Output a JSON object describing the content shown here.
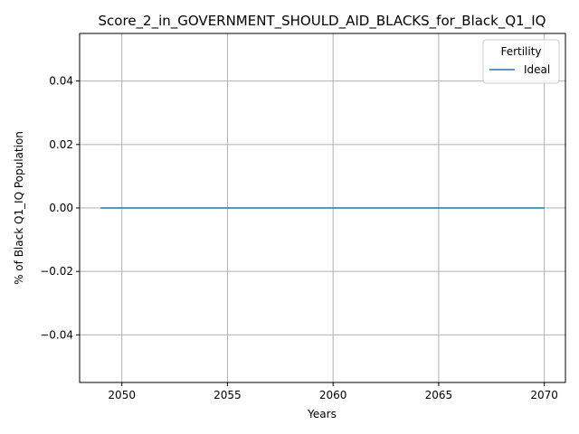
{
  "chart_data": {
    "type": "line",
    "title": "Score_2_in_GOVERNMENT_SHOULD_AID_BLACKS_for_Black_Q1_IQ",
    "xlabel": "Years",
    "ylabel": "% of Black Q1_IQ Population",
    "xlim": [
      2048,
      2071
    ],
    "ylim": [
      -0.055,
      0.055
    ],
    "x_ticks": [
      2050,
      2055,
      2060,
      2065,
      2070
    ],
    "x_tick_labels": [
      "2050",
      "2055",
      "2060",
      "2065",
      "2070"
    ],
    "y_ticks": [
      -0.04,
      -0.02,
      0.0,
      0.02,
      0.04
    ],
    "y_tick_labels": [
      "−0.04",
      "−0.02",
      "0.00",
      "0.02",
      "0.04"
    ],
    "grid": true,
    "legend": {
      "title": "Fertility",
      "placement": "top-right"
    },
    "series": [
      {
        "name": "Ideal",
        "color": "#1f77b4",
        "x": [
          2049,
          2050,
          2051,
          2052,
          2053,
          2054,
          2055,
          2056,
          2057,
          2058,
          2059,
          2060,
          2061,
          2062,
          2063,
          2064,
          2065,
          2066,
          2067,
          2068,
          2069,
          2070
        ],
        "y": [
          0,
          0,
          0,
          0,
          0,
          0,
          0,
          0,
          0,
          0,
          0,
          0,
          0,
          0,
          0,
          0,
          0,
          0,
          0,
          0,
          0,
          0
        ]
      }
    ]
  }
}
